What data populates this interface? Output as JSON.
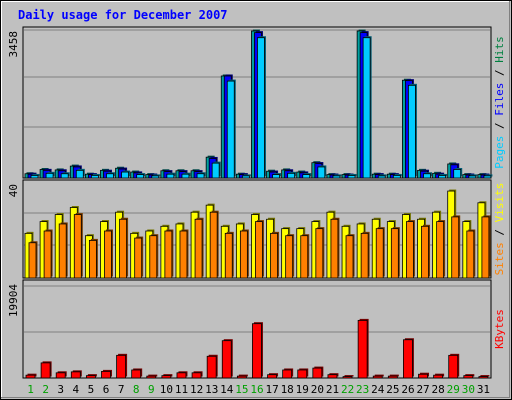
{
  "chart_data": [
    {
      "type": "bar",
      "title": "Daily usage for December 2007",
      "axis_max_label": "3458",
      "ylim": [
        0,
        3458
      ],
      "series_labels": [
        {
          "name": "Pages",
          "color": "#00ccff"
        },
        {
          "name": "Files",
          "color": "#0000ff"
        },
        {
          "name": "Hits",
          "color": "#008040"
        }
      ],
      "separator": " / ",
      "categories": [
        "1",
        "2",
        "3",
        "4",
        "5",
        "6",
        "7",
        "8",
        "9",
        "10",
        "11",
        "12",
        "13",
        "14",
        "15",
        "16",
        "17",
        "18",
        "19",
        "20",
        "21",
        "22",
        "23",
        "24",
        "25",
        "26",
        "27",
        "28",
        "29",
        "30",
        "31"
      ],
      "weekend_days": [
        1,
        2,
        8,
        9,
        15,
        16,
        22,
        23,
        29,
        30
      ],
      "series": [
        {
          "name": "Hits",
          "color": "#00a0a0",
          "values": [
            100,
            200,
            190,
            280,
            90,
            180,
            230,
            140,
            80,
            170,
            170,
            170,
            490,
            2400,
            90,
            3458,
            160,
            190,
            140,
            360,
            80,
            80,
            3458,
            90,
            90,
            2300,
            180,
            110,
            330,
            80,
            80
          ]
        },
        {
          "name": "Files",
          "color": "#0000ff",
          "values": [
            90,
            180,
            170,
            260,
            80,
            160,
            210,
            120,
            70,
            150,
            150,
            150,
            460,
            2400,
            80,
            3420,
            140,
            170,
            120,
            340,
            70,
            70,
            3420,
            80,
            80,
            2290,
            160,
            90,
            310,
            70,
            70
          ]
        },
        {
          "name": "Pages",
          "color": "#00ccff",
          "values": [
            60,
            110,
            100,
            180,
            60,
            100,
            140,
            80,
            50,
            90,
            90,
            100,
            350,
            2280,
            50,
            3300,
            80,
            110,
            80,
            260,
            50,
            60,
            3300,
            50,
            60,
            2180,
            100,
            60,
            200,
            50,
            50
          ]
        }
      ]
    },
    {
      "type": "bar",
      "axis_max_label": "40",
      "ylim": [
        0,
        40
      ],
      "series_labels": [
        {
          "name": "Sites",
          "color": "#ff8000"
        },
        {
          "name": "Visits",
          "color": "#ffff00"
        }
      ],
      "separator": " / ",
      "series": [
        {
          "name": "Visits",
          "color": "#ffff00",
          "values": [
            19,
            24,
            27,
            30,
            18,
            24,
            28,
            19,
            20,
            22,
            23,
            28,
            31,
            22,
            23,
            27,
            25,
            21,
            21,
            24,
            28,
            22,
            23,
            25,
            24,
            27,
            25,
            28,
            37,
            24,
            32
          ]
        },
        {
          "name": "Sites",
          "color": "#ff8000",
          "values": [
            15,
            20,
            23,
            27,
            16,
            20,
            25,
            17,
            18,
            20,
            20,
            25,
            28,
            19,
            20,
            24,
            19,
            18,
            18,
            21,
            25,
            18,
            19,
            21,
            21,
            24,
            22,
            24,
            26,
            20,
            26
          ]
        }
      ]
    },
    {
      "type": "bar",
      "axis_max_label": "19904",
      "ylim": [
        0,
        19904
      ],
      "series_labels": [
        {
          "name": "KBytes",
          "color": "#ff0000"
        }
      ],
      "series": [
        {
          "name": "KBytes",
          "color": "#ff0000",
          "values": [
            600,
            3200,
            1100,
            1300,
            500,
            1400,
            4800,
            1700,
            400,
            500,
            1100,
            1100,
            4600,
            7900,
            400,
            11500,
            700,
            1700,
            1700,
            2100,
            700,
            300,
            12200,
            400,
            400,
            8100,
            800,
            600,
            4800,
            500,
            300
          ]
        }
      ]
    }
  ]
}
